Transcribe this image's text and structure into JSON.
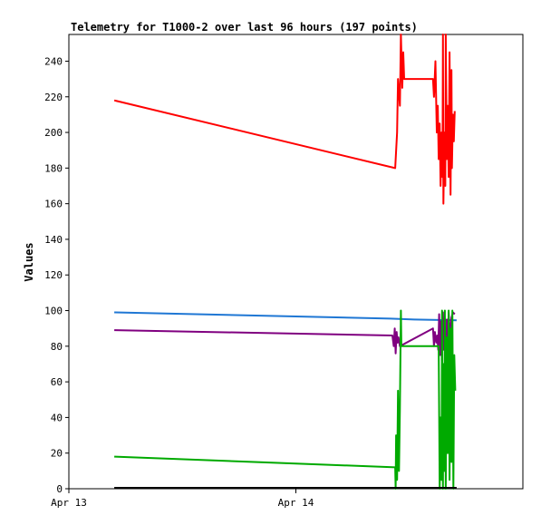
{
  "chart_data": {
    "type": "line",
    "title": "Telemetry for T1000-2 over last 96 hours (197 points)",
    "xlabel": "",
    "ylabel": "Values",
    "x_ticks": [
      {
        "label": "Apr 13",
        "value": 0
      },
      {
        "label": "Apr 14",
        "value": 24
      }
    ],
    "xlim": [
      0,
      48
    ],
    "ylim": [
      0,
      255
    ],
    "y_ticks": [
      0,
      20,
      40,
      60,
      80,
      100,
      120,
      140,
      160,
      180,
      200,
      220,
      240
    ],
    "grid": false,
    "legend": "none",
    "series": [
      {
        "color": "#ff0000",
        "points": [
          [
            4.8,
            218
          ],
          [
            34.5,
            180
          ],
          [
            34.7,
            200
          ],
          [
            34.8,
            230
          ],
          [
            35.0,
            215
          ],
          [
            35.1,
            255
          ],
          [
            35.25,
            225
          ],
          [
            35.35,
            245
          ],
          [
            35.45,
            230
          ],
          [
            38.5,
            230
          ],
          [
            38.6,
            220
          ],
          [
            38.75,
            240
          ],
          [
            38.9,
            200
          ],
          [
            39.0,
            215
          ],
          [
            39.1,
            185
          ],
          [
            39.2,
            205
          ],
          [
            39.3,
            170
          ],
          [
            39.4,
            200
          ],
          [
            39.5,
            175
          ],
          [
            39.55,
            255
          ],
          [
            39.6,
            160
          ],
          [
            39.7,
            200
          ],
          [
            39.8,
            170
          ],
          [
            39.85,
            255
          ],
          [
            39.95,
            185
          ],
          [
            40.05,
            215
          ],
          [
            40.15,
            175
          ],
          [
            40.25,
            245
          ],
          [
            40.35,
            165
          ],
          [
            40.45,
            235
          ],
          [
            40.5,
            180
          ],
          [
            40.6,
            210
          ],
          [
            40.7,
            195
          ],
          [
            40.8,
            212
          ]
        ]
      },
      {
        "color": "#1f77d4",
        "points": [
          [
            4.8,
            99
          ],
          [
            34.0,
            95.5
          ],
          [
            36.5,
            95
          ],
          [
            41.0,
            94.5
          ]
        ]
      },
      {
        "color": "#800080",
        "points": [
          [
            4.8,
            89
          ],
          [
            34.2,
            86
          ],
          [
            34.35,
            80
          ],
          [
            34.45,
            90
          ],
          [
            34.55,
            76
          ],
          [
            34.65,
            88
          ],
          [
            34.75,
            82
          ],
          [
            34.85,
            85
          ],
          [
            35.0,
            80
          ],
          [
            38.5,
            90
          ],
          [
            38.6,
            80
          ],
          [
            38.7,
            88
          ],
          [
            38.85,
            82
          ],
          [
            38.95,
            86
          ],
          [
            39.05,
            78
          ],
          [
            39.15,
            98
          ],
          [
            39.25,
            75
          ],
          [
            39.35,
            94
          ],
          [
            39.45,
            72
          ],
          [
            39.55,
            99
          ],
          [
            39.65,
            78
          ],
          [
            39.75,
            90
          ],
          [
            39.85,
            70
          ],
          [
            39.95,
            95
          ],
          [
            40.05,
            80
          ],
          [
            40.15,
            99
          ],
          [
            40.3,
            85
          ],
          [
            40.45,
            96
          ],
          [
            40.6,
            99
          ],
          [
            40.8,
            98
          ]
        ]
      },
      {
        "color": "#00aa00",
        "points": [
          [
            4.8,
            18
          ],
          [
            34.5,
            12
          ],
          [
            34.55,
            0
          ],
          [
            34.6,
            30
          ],
          [
            34.7,
            5
          ],
          [
            34.8,
            55
          ],
          [
            34.9,
            10
          ],
          [
            35.0,
            45
          ],
          [
            35.1,
            100
          ],
          [
            35.15,
            80
          ],
          [
            39.1,
            80
          ],
          [
            39.2,
            0
          ],
          [
            39.3,
            40
          ],
          [
            39.4,
            5
          ],
          [
            39.45,
            100
          ],
          [
            39.55,
            0
          ],
          [
            39.6,
            70
          ],
          [
            39.7,
            10
          ],
          [
            39.75,
            100
          ],
          [
            39.85,
            0
          ],
          [
            39.95,
            85
          ],
          [
            40.05,
            20
          ],
          [
            40.15,
            100
          ],
          [
            40.25,
            5
          ],
          [
            40.35,
            90
          ],
          [
            40.45,
            15
          ],
          [
            40.55,
            100
          ],
          [
            40.65,
            0
          ],
          [
            40.75,
            75
          ],
          [
            40.85,
            55
          ]
        ]
      },
      {
        "color": "#000000",
        "points": [
          [
            4.8,
            0.5
          ],
          [
            41.0,
            0.5
          ]
        ]
      }
    ]
  }
}
